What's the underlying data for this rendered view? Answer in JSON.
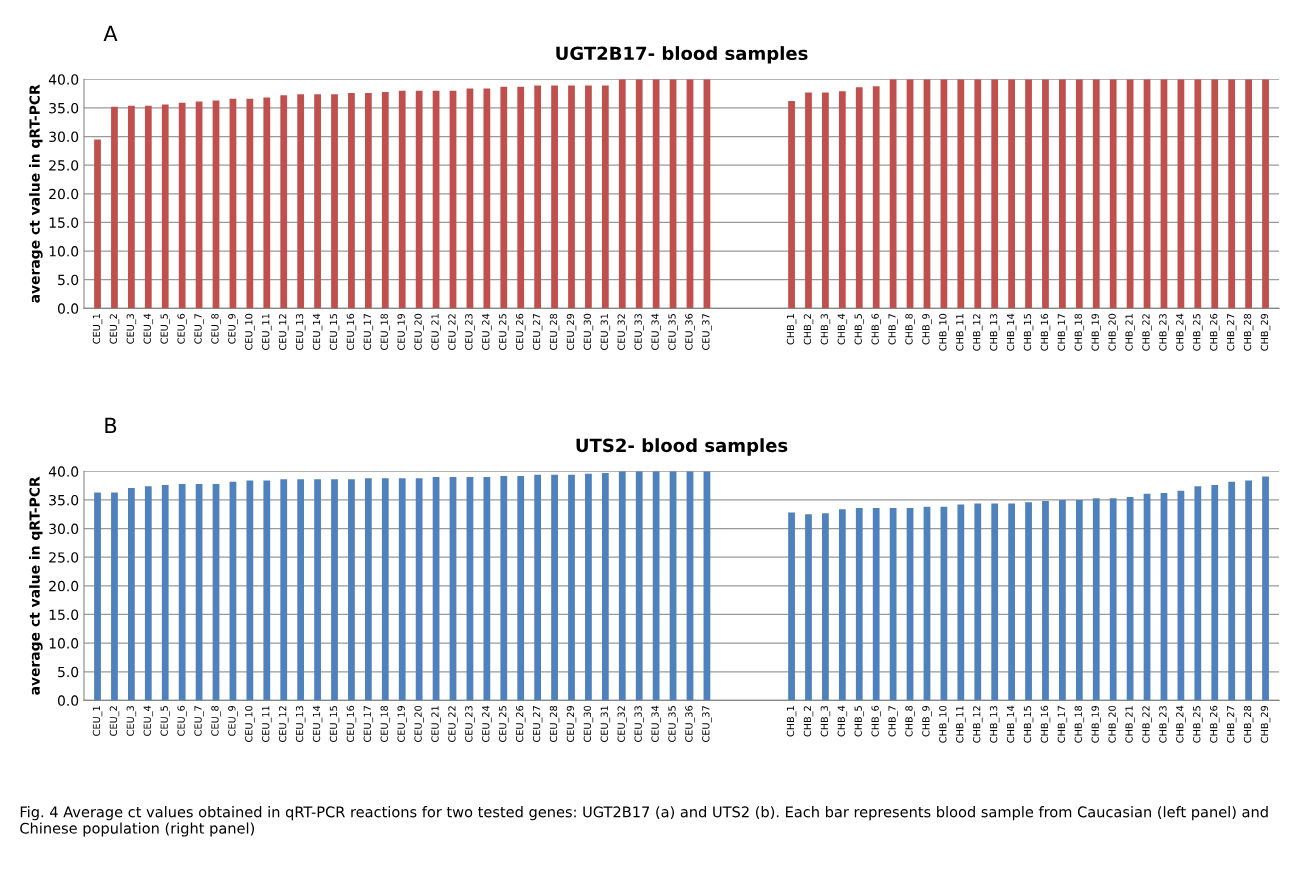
{
  "chart_data": [
    {
      "type": "bar",
      "title": "UGT2B17- blood samples",
      "annotations": [
        "A"
      ],
      "ylabel": "average ct value in qRT-PCR",
      "categories": [
        "CEU_1",
        "CEU_2",
        "CEU_3",
        "CEU_4",
        "CEU_5",
        "CEU_6",
        "CEU_7",
        "CEU_8",
        "CEU_9",
        "CEU_10",
        "CEU_11",
        "CEU_12",
        "CEU_13",
        "CEU_14",
        "CEU_15",
        "CEU_16",
        "CEU_17",
        "CEU_18",
        "CEU_19",
        "CEU_20",
        "CEU_21",
        "CEU_22",
        "CEU_23",
        "CEU_24",
        "CEU_25",
        "CEU_26",
        "CEU_27",
        "CEU_28",
        "CEU_29",
        "CEU_30",
        "CEU_31",
        "CEU_32",
        "CEU_33",
        "CEU_34",
        "CEU_35",
        "CEU_36",
        "CEU_37",
        null,
        null,
        null,
        null,
        "CHB_1",
        "CHB_2",
        "CHB_3",
        "CHB_4",
        "CHB_5",
        "CHB_6",
        "CHB_7",
        "CHB_8",
        "CHB_9",
        "CHB_10",
        "CHB_11",
        "CHB_12",
        "CHB_13",
        "CHB_14",
        "CHB_15",
        "CHB_16",
        "CHB_17",
        "CHB_18",
        "CHB_19",
        "CHB_20",
        "CHB_21",
        "CHB_22",
        "CHB_23",
        "CHB_24",
        "CHB_25",
        "CHB_26",
        "CHB_27",
        "CHB_28",
        "CHB_29"
      ],
      "values": [
        29.5,
        35.2,
        35.4,
        35.4,
        35.6,
        35.9,
        36.1,
        36.3,
        36.6,
        36.6,
        36.8,
        37.2,
        37.4,
        37.4,
        37.4,
        37.6,
        37.6,
        37.8,
        38.0,
        38.0,
        38.0,
        38.0,
        38.4,
        38.4,
        38.7,
        38.7,
        38.9,
        38.9,
        38.9,
        38.9,
        38.9,
        40,
        40,
        40,
        40,
        40,
        40,
        null,
        null,
        null,
        null,
        36.2,
        37.7,
        37.7,
        37.9,
        38.6,
        38.8,
        40,
        40,
        40,
        40,
        40,
        40,
        40,
        40,
        40,
        40,
        40,
        40,
        40,
        40,
        40,
        40,
        40,
        40,
        40,
        40,
        40,
        40,
        40
      ],
      "color": "#c0504d",
      "ylim": [
        0,
        40
      ],
      "yticks": [
        {
          "value": 0,
          "label": "0.0"
        },
        {
          "value": 5,
          "label": "5.0"
        },
        {
          "value": 10,
          "label": "10.0"
        },
        {
          "value": 15,
          "label": "15.0"
        },
        {
          "value": 20,
          "label": "20.0"
        },
        {
          "value": 25,
          "label": "25.0"
        },
        {
          "value": 30,
          "label": "30.0"
        },
        {
          "value": 35,
          "label": "35.0"
        },
        {
          "value": 40,
          "label": "40.0"
        }
      ],
      "grid": "y",
      "legend": false
    },
    {
      "type": "bar",
      "title": "UTS2- blood samples",
      "annotations": [
        "B",
        "Fig. 4 Average ct values obtained in qRT-PCR reactions for two tested genes: UGT2B17 (a) and UTS2 (b). Each bar represents blood sample from Caucasian (left panel) and Chinese population (right panel)"
      ],
      "ylabel": "average ct value in qRT-PCR",
      "categories": [
        "CEU_1",
        "CEU_2",
        "CEU_3",
        "CEU_4",
        "CEU_5",
        "CEU_6",
        "CEU_7",
        "CEU_8",
        "CEU_9",
        "CEU_10",
        "CEU_11",
        "CEU_12",
        "CEU_13",
        "CEU_14",
        "CEU_15",
        "CEU_16",
        "CEU_17",
        "CEU_18",
        "CEU_19",
        "CEU_20",
        "CEU_21",
        "CEU_22",
        "CEU_23",
        "CEU_24",
        "CEU_25",
        "CEU_26",
        "CEU_27",
        "CEU_28",
        "CEU_29",
        "CEU_30",
        "CEU_31",
        "CEU_32",
        "CEU_33",
        "CEU_34",
        "CEU_35",
        "CEU_36",
        "CEU_37",
        null,
        null,
        null,
        null,
        "CHB_1",
        "CHB_2",
        "CHB_3",
        "CHB_4",
        "CHB_5",
        "CHB_6",
        "CHB_7",
        "CHB_8",
        "CHB_9",
        "CHB_10",
        "CHB_11",
        "CHB_12",
        "CHB_13",
        "CHB_14",
        "CHB_15",
        "CHB_16",
        "CHB_17",
        "CHB_18",
        "CHB_19",
        "CHB_20",
        "CHB_21",
        "CHB_22",
        "CHB_23",
        "CHB_24",
        "CHB_25",
        "CHB_26",
        "CHB_27",
        "CHB_28",
        "CHB_29"
      ],
      "values": [
        36.3,
        36.3,
        37.1,
        37.4,
        37.6,
        37.8,
        37.8,
        37.8,
        38.2,
        38.4,
        38.4,
        38.6,
        38.6,
        38.6,
        38.6,
        38.6,
        38.8,
        38.8,
        38.8,
        38.8,
        39.0,
        39.0,
        39.0,
        39.0,
        39.2,
        39.2,
        39.4,
        39.4,
        39.4,
        39.6,
        39.7,
        40,
        40,
        40,
        40,
        40,
        40,
        null,
        null,
        null,
        null,
        32.8,
        32.5,
        32.7,
        33.4,
        33.6,
        33.6,
        33.6,
        33.6,
        33.8,
        33.8,
        34.2,
        34.4,
        34.4,
        34.4,
        34.6,
        34.8,
        35.0,
        35.0,
        35.3,
        35.3,
        35.5,
        36.1,
        36.2,
        36.6,
        37.4,
        37.6,
        38.2,
        38.4,
        39.1
      ],
      "color": "#4f81bd",
      "ylim": [
        0,
        40
      ],
      "yticks": [
        {
          "value": 0,
          "label": "0.0"
        },
        {
          "value": 5,
          "label": "5.0"
        },
        {
          "value": 10,
          "label": "10.0"
        },
        {
          "value": 15,
          "label": "15.0"
        },
        {
          "value": 20,
          "label": "20.0"
        },
        {
          "value": 25,
          "label": "25.0"
        },
        {
          "value": 30,
          "label": "30.0"
        },
        {
          "value": 35,
          "label": "35.0"
        },
        {
          "value": 40,
          "label": "40.0"
        }
      ],
      "grid": "y",
      "legend": false
    }
  ]
}
